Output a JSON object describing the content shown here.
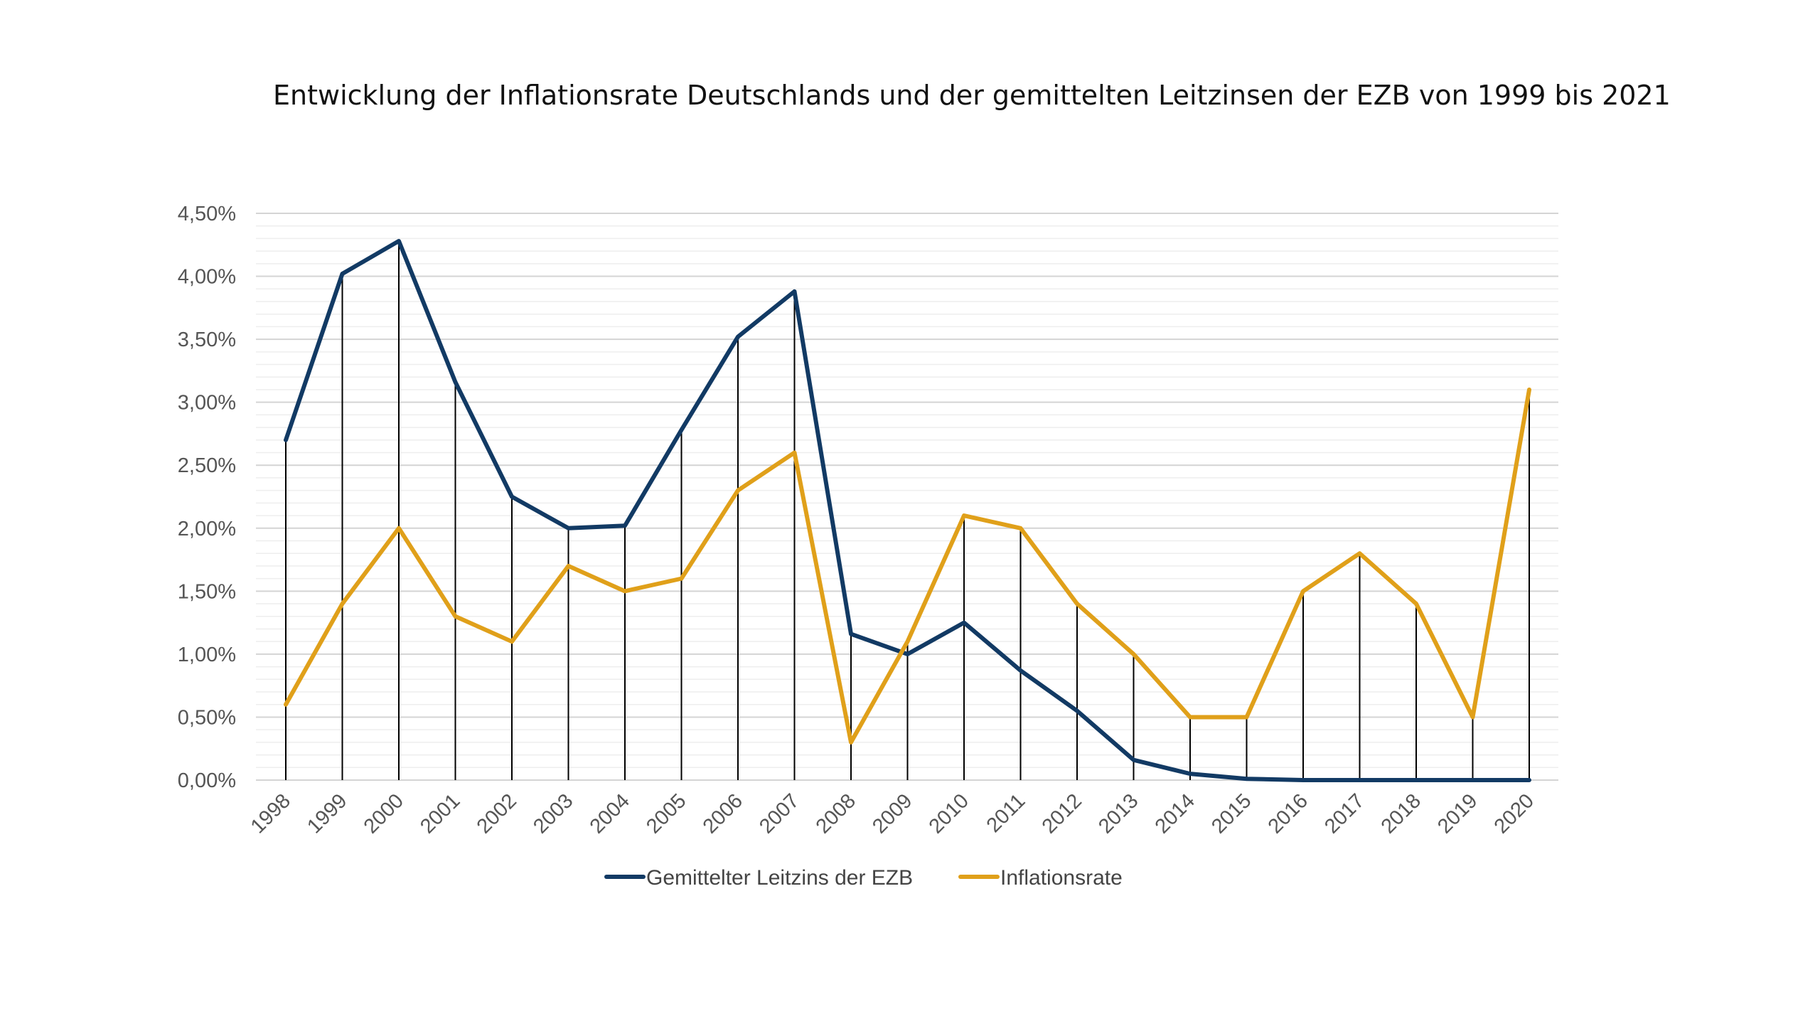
{
  "chart_data": {
    "type": "line",
    "title": "Entwicklung der Inflationsrate Deutschlands und der gemittelten Leitzinsen der EZB von 1999 bis 2021",
    "xlabel": "",
    "ylabel": "",
    "categories": [
      "1998",
      "1999",
      "2000",
      "2001",
      "2002",
      "2003",
      "2004",
      "2005",
      "2006",
      "2007",
      "2008",
      "2009",
      "2010",
      "2011",
      "2012",
      "2013",
      "2014",
      "2015",
      "2016",
      "2017",
      "2018",
      "2019",
      "2020"
    ],
    "y_ticks": [
      "0,00%",
      "0,50%",
      "1,00%",
      "1,50%",
      "2,00%",
      "2,50%",
      "3,00%",
      "3,50%",
      "4,00%",
      "4,50%"
    ],
    "ylim": [
      0,
      4.5
    ],
    "y_unit": "%",
    "grid": true,
    "drop_lines": true,
    "legend_position": "bottom",
    "series": [
      {
        "name": "Gemittelter Leitzins der EZB",
        "color": "#123a64",
        "values": [
          2.7,
          4.02,
          4.28,
          3.16,
          2.25,
          2.0,
          2.02,
          2.78,
          3.52,
          3.88,
          1.16,
          1.0,
          1.25,
          0.87,
          0.55,
          0.16,
          0.05,
          0.01,
          0.0,
          0.0,
          0.0,
          0.0,
          0.0
        ]
      },
      {
        "name": "Inflationsrate",
        "color": "#e0a01a",
        "values": [
          0.6,
          1.4,
          2.0,
          1.3,
          1.1,
          1.7,
          1.5,
          1.6,
          2.3,
          2.6,
          0.3,
          1.1,
          2.1,
          2.0,
          1.4,
          1.0,
          0.5,
          0.5,
          1.5,
          1.8,
          1.4,
          0.5,
          3.1
        ]
      }
    ]
  }
}
